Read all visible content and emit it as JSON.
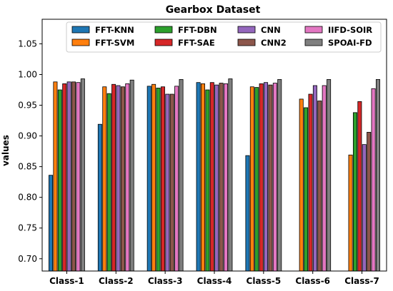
{
  "chart_data": {
    "type": "bar",
    "title": "Gearbox Dataset",
    "xlabel": "",
    "ylabel": "values",
    "ylim": [
      0.68,
      1.09
    ],
    "yticks": [
      "0.70",
      "0.75",
      "0.80",
      "0.85",
      "0.90",
      "0.95",
      "1.00",
      "1.05"
    ],
    "categories": [
      "Class-1",
      "Class-2",
      "Class-3",
      "Class-4",
      "Class-5",
      "Class-6",
      "Class-7"
    ],
    "legend_position": "top-right",
    "grid": false,
    "series": [
      {
        "name": "FFT-KNN",
        "color": "#1f77b4",
        "values": [
          0.836,
          0.919,
          0.981,
          0.987,
          0.868,
          0.677,
          0.67
        ]
      },
      {
        "name": "FFT-SVM",
        "color": "#ff7f0e",
        "values": [
          0.988,
          0.98,
          0.984,
          0.985,
          0.98,
          0.96,
          0.869
        ]
      },
      {
        "name": "FFT-DBN",
        "color": "#2ca02c",
        "values": [
          0.975,
          0.969,
          0.978,
          0.975,
          0.979,
          0.946,
          0.938
        ]
      },
      {
        "name": "FFT-SAE",
        "color": "#d62728",
        "values": [
          0.985,
          0.984,
          0.98,
          0.987,
          0.985,
          0.968,
          0.956
        ]
      },
      {
        "name": "CNN",
        "color": "#9467bd",
        "values": [
          0.988,
          0.982,
          0.968,
          0.983,
          0.987,
          0.982,
          0.886
        ]
      },
      {
        "name": "CNN2",
        "color": "#8c564b",
        "values": [
          0.988,
          0.98,
          0.968,
          0.986,
          0.983,
          0.957,
          0.906
        ]
      },
      {
        "name": "IIFD-SOIR",
        "color": "#e377c2",
        "values": [
          0.987,
          0.985,
          0.981,
          0.985,
          0.986,
          0.982,
          0.977
        ]
      },
      {
        "name": "SPOAI-FD",
        "color": "#7f7f7f",
        "values": [
          0.993,
          0.991,
          0.992,
          0.993,
          0.992,
          0.992,
          0.992
        ]
      }
    ]
  }
}
